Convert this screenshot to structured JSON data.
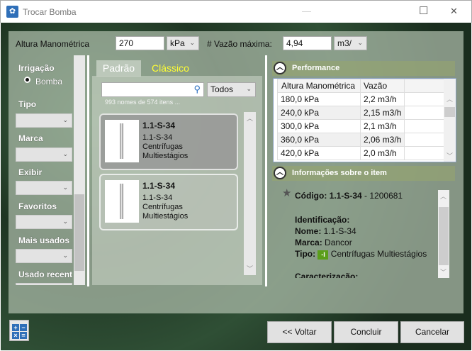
{
  "window": {
    "title": "Trocar Bomba",
    "minimize": "—",
    "maximize": "☐",
    "close": "✕"
  },
  "top": {
    "altura_label": "Altura Manométrica",
    "altura_value": "270",
    "altura_unit": "kPa",
    "vazao_label": "# Vazão máxima:",
    "vazao_value": "4,94",
    "vazao_unit": "m3/"
  },
  "sidebar": {
    "irrigacao": "Irrigação",
    "bomba": "Bomba",
    "tipo": "Tipo",
    "marca": "Marca",
    "exibir": "Exibir",
    "favoritos": "Favoritos",
    "mais_usados": "Mais usados",
    "usado_recent": "Usado recent"
  },
  "tabs": {
    "padrao": "Padrão",
    "classico": "Clássico"
  },
  "search": {
    "value": "",
    "filter": "Todos",
    "count": "993 nomes de 574 itens ..."
  },
  "cards": [
    {
      "title": "1.1-S-34",
      "name": "1.1-S-34",
      "type1": "Centrífugas",
      "type2": "Multiestágios",
      "selected": true
    },
    {
      "title": "1.1-S-34",
      "name": "1.1-S-34",
      "type1": "Centrífugas",
      "type2": "Multiestágios",
      "selected": false
    }
  ],
  "performance": {
    "header": "Performance",
    "columns": [
      "Altura Manométrica",
      "Vazão"
    ],
    "rows": [
      [
        "180,0 kPa",
        "2,2 m3/h"
      ],
      [
        "240,0 kPa",
        "2,15 m3/h"
      ],
      [
        "300,0 kPa",
        "2,1 m3/h"
      ],
      [
        "360,0 kPa",
        "2,06 m3/h"
      ],
      [
        "420,0 kPa",
        "2,0 m3/h"
      ]
    ]
  },
  "info": {
    "header": "Informações sobre o item",
    "codigo_label": "Código:",
    "codigo_value": "1.1-S-34",
    "codigo_id": " - 1200681",
    "identificacao": "Identificação:",
    "nome_label": "Nome:",
    "nome_value": " 1.1-S-34",
    "marca_label": "Marca:",
    "marca_value": " Dancor",
    "tipo_label": "Tipo:",
    "tipo_value": "Centrífugas Multiestágios",
    "caracterizacao": "Caracterização:"
  },
  "buttons": {
    "voltar": "<< Voltar",
    "concluir": "Concluir",
    "cancelar": "Cancelar"
  },
  "colors": {
    "accent_tab": "#ffff33",
    "icon_blue": "#2f6fb8",
    "tipo_icon": "#5a9e1a"
  }
}
